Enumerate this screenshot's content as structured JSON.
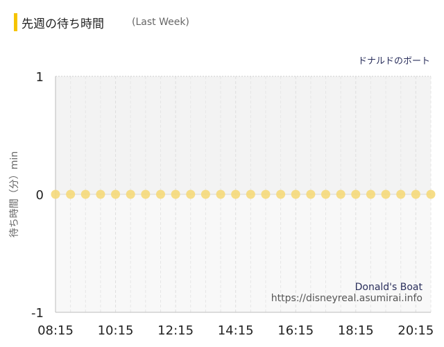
{
  "header": {
    "title": "先週の待ち時間",
    "subtitle": "(Last Week)"
  },
  "chart_data": {
    "type": "scatter",
    "title": "ドナルドのボート",
    "ylabel": "待ち時間（分）min",
    "ylim": [
      -1,
      1
    ],
    "y_ticks": [
      "1",
      "0",
      "-1"
    ],
    "x_tick_labels": [
      "08:15",
      "10:15",
      "12:15",
      "14:15",
      "16:15",
      "18:15",
      "20:15"
    ],
    "x": [
      "08:15",
      "08:45",
      "09:15",
      "09:45",
      "10:15",
      "10:45",
      "11:15",
      "11:45",
      "12:15",
      "12:45",
      "13:15",
      "13:45",
      "14:15",
      "14:45",
      "15:15",
      "15:45",
      "16:15",
      "16:45",
      "17:15",
      "17:45",
      "18:15",
      "18:45",
      "19:15",
      "19:45",
      "20:15",
      "20:45"
    ],
    "values": [
      0,
      0,
      0,
      0,
      0,
      0,
      0,
      0,
      0,
      0,
      0,
      0,
      0,
      0,
      0,
      0,
      0,
      0,
      0,
      0,
      0,
      0,
      0,
      0,
      0,
      0
    ],
    "point_color": "#f5d97a",
    "grid": true
  },
  "watermark": {
    "name": "Donald's Boat",
    "url": "https://disneyreal.asumirai.info"
  }
}
